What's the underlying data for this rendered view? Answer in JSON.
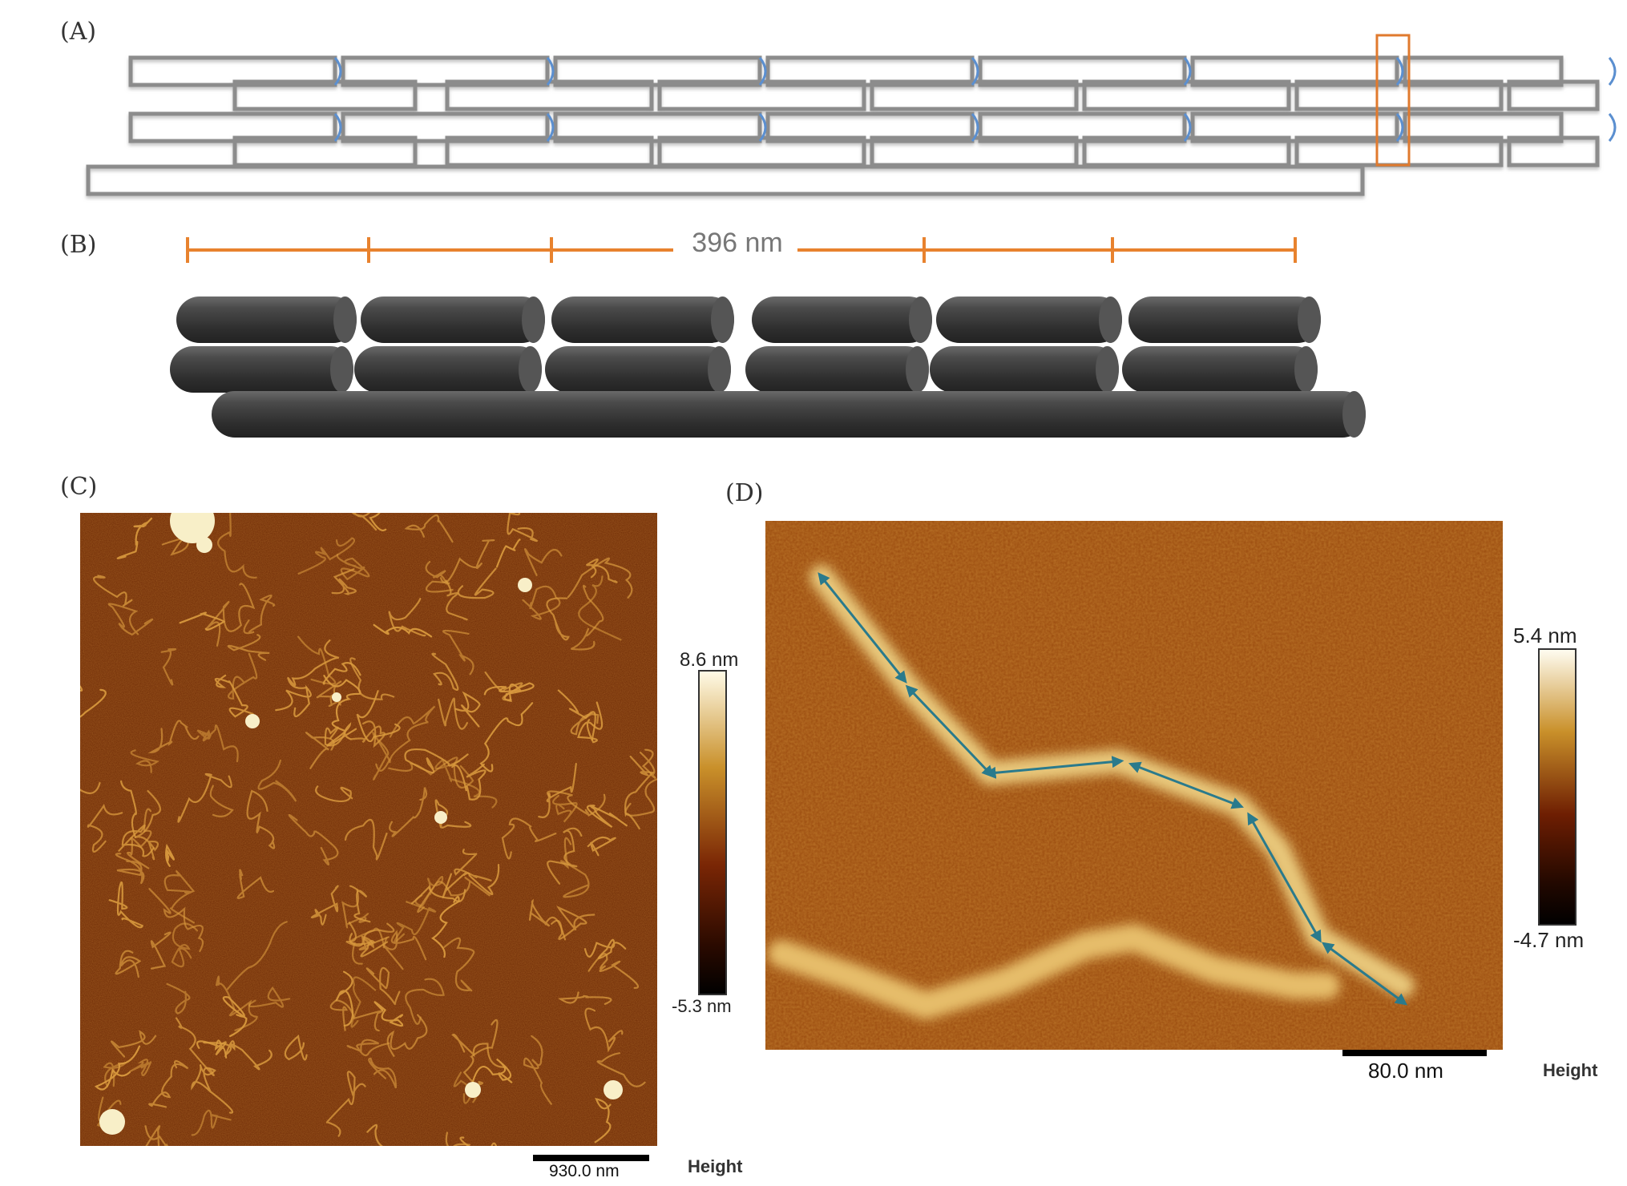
{
  "panels": {
    "a": {
      "label": "(A)"
    },
    "b": {
      "label": "(B)",
      "dimension_label": "396 nm"
    },
    "c": {
      "label": "(C)",
      "colorbar_max": "8.6 nm",
      "colorbar_min": "-5.3 nm",
      "scalebar": "930.0 nm",
      "channel": "Height"
    },
    "d": {
      "label": "(D)",
      "colorbar_max": "5.4 nm",
      "colorbar_min": "-4.7 nm",
      "scalebar": "80.0 nm",
      "channel": "Height"
    }
  },
  "colors": {
    "afm_dark": "#6e2a05",
    "afm_mid": "#8a3f0a",
    "afm_bright": "#f5dfa0",
    "dimension_orange": "#e8822e",
    "arrow_teal": "#2a7a8c",
    "cylinder": "#3d3d3d",
    "strand_gray": "#8c8c8c",
    "crossover_blue": "#5b8fd0"
  }
}
